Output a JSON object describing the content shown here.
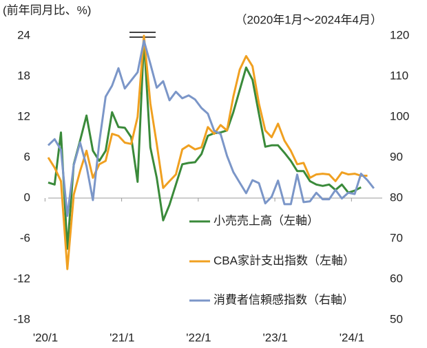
{
  "chart_data": {
    "type": "line",
    "annotations": [
      "(前年同月比、%)",
      "（2020年1月～2024年4月）"
    ],
    "categories": [
      "'20/1",
      null,
      null,
      null,
      null,
      null,
      null,
      null,
      null,
      null,
      null,
      null,
      "'21/1",
      null,
      null,
      null,
      null,
      null,
      null,
      null,
      null,
      null,
      null,
      null,
      "'22/1",
      null,
      null,
      null,
      null,
      null,
      null,
      null,
      null,
      null,
      null,
      null,
      "'23/1",
      null,
      null,
      null,
      null,
      null,
      null,
      null,
      null,
      null,
      null,
      null,
      "'24/1",
      null,
      null,
      null
    ],
    "ylim": [
      -18,
      24
    ],
    "yticks": [
      -18,
      -12,
      -6,
      0,
      6,
      12,
      18,
      24
    ],
    "y2lim": [
      50,
      120
    ],
    "y2ticks": [
      50,
      60,
      70,
      80,
      90,
      100,
      110,
      120
    ],
    "legend": "right",
    "series": [
      {
        "name": "小売売上高（左軸）",
        "color": "#3a8a3a",
        "values": [
          2.3,
          2.0,
          9.7,
          -7.5,
          5.0,
          8.5,
          12.2,
          7.0,
          5.5,
          7.0,
          12.7,
          10.5,
          10.4,
          9.0,
          2.4,
          23.5,
          7.5,
          3.0,
          -3.3,
          -1.0,
          2.0,
          5.0,
          5.2,
          5.3,
          6.5,
          9.2,
          9.6,
          9.7,
          10.0,
          12.7,
          16.0,
          19.3,
          17.5,
          12.5,
          7.6,
          7.8,
          7.8,
          6.7,
          5.5,
          4.0,
          4.0,
          2.5,
          2.0,
          1.8,
          2.0,
          1.2,
          2.0,
          0.8,
          1.1,
          1.6,
          null,
          null
        ]
      },
      {
        "name": "CBA家計支出指数（左軸）",
        "color": "#f0a020",
        "values": [
          6.0,
          4.5,
          2.5,
          -10.5,
          0.5,
          4.0,
          7.0,
          3.0,
          5.0,
          5.5,
          9.5,
          9.2,
          8.2,
          8.0,
          12.0,
          24.0,
          14.0,
          8.0,
          1.5,
          2.5,
          3.5,
          7.2,
          7.8,
          7.2,
          7.5,
          10.5,
          9.5,
          10.8,
          10.0,
          15.0,
          19.0,
          21.0,
          19.5,
          14.0,
          10.0,
          9.0,
          11.0,
          8.5,
          7.0,
          5.0,
          5.2,
          3.0,
          3.5,
          3.6,
          3.5,
          2.5,
          3.8,
          3.5,
          3.6,
          3.3,
          3.3,
          null
        ]
      },
      {
        "name": "消費者信頼感指数（右軸）",
        "color": "#7b96c8",
        "axis": "y2",
        "values": [
          93.0,
          94.5,
          91.9,
          75.6,
          88.1,
          93.7,
          87.9,
          79.5,
          93.8,
          105.0,
          107.7,
          112.0,
          107.0,
          109.0,
          111.0,
          118.8,
          113.1,
          107.2,
          108.8,
          104.1,
          106.2,
          104.6,
          105.3,
          104.3,
          102.2,
          100.8,
          96.6,
          95.8,
          90.4,
          86.4,
          83.8,
          81.2,
          84.4,
          83.7,
          78.7,
          80.3,
          84.3,
          78.5,
          78.5,
          85.8,
          79.0,
          79.2,
          81.3,
          79.7,
          79.7,
          82.0,
          79.9,
          81.3,
          81.0,
          86.0,
          84.4,
          82.4
        ]
      }
    ]
  }
}
